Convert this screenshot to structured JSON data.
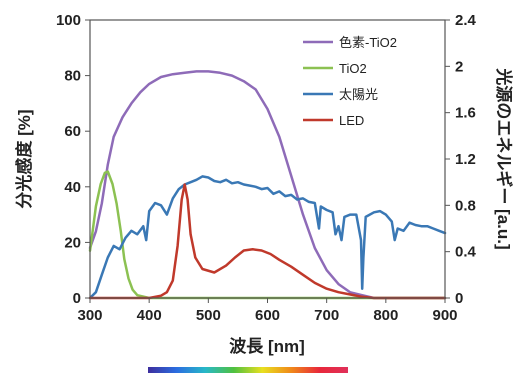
{
  "chart_data": {
    "type": "line",
    "xlabel": "波長 [nm]",
    "ylabel_left": "分光感度 [%]",
    "ylabel_right": "光源のエネルギー [a.u.]",
    "xlim": [
      300,
      900
    ],
    "ylim_left": [
      0,
      100
    ],
    "ylim_right": [
      0,
      2.4
    ],
    "x_ticks": [
      "300",
      "400",
      "500",
      "600",
      "700",
      "800",
      "900"
    ],
    "y_ticks_left": [
      "0",
      "20",
      "40",
      "60",
      "80",
      "100"
    ],
    "y_ticks_right": [
      "0",
      "0.4",
      "0.8",
      "1.2",
      "1.6",
      "2",
      "2.4"
    ],
    "legend_position": "top-right",
    "series": [
      {
        "name": "色素-TiO2",
        "axis": "left",
        "color": "#8e6bb8",
        "points": [
          [
            300,
            18
          ],
          [
            310,
            24
          ],
          [
            320,
            34
          ],
          [
            330,
            48
          ],
          [
            340,
            58
          ],
          [
            355,
            65
          ],
          [
            370,
            70
          ],
          [
            385,
            74
          ],
          [
            400,
            77
          ],
          [
            420,
            79.5
          ],
          [
            440,
            80.5
          ],
          [
            460,
            81
          ],
          [
            480,
            81.5
          ],
          [
            500,
            81.5
          ],
          [
            520,
            81
          ],
          [
            540,
            80
          ],
          [
            560,
            78
          ],
          [
            580,
            75
          ],
          [
            600,
            68
          ],
          [
            620,
            58
          ],
          [
            640,
            44
          ],
          [
            660,
            30
          ],
          [
            680,
            18
          ],
          [
            700,
            10
          ],
          [
            720,
            5
          ],
          [
            740,
            2
          ],
          [
            760,
            1
          ],
          [
            780,
            0
          ],
          [
            900,
            0
          ]
        ]
      },
      {
        "name": "TiO2",
        "axis": "left",
        "color": "#8cc152",
        "points": [
          [
            300,
            17
          ],
          [
            305,
            25
          ],
          [
            310,
            33
          ],
          [
            318,
            41
          ],
          [
            325,
            45
          ],
          [
            330,
            45.5
          ],
          [
            338,
            41
          ],
          [
            345,
            34
          ],
          [
            352,
            24
          ],
          [
            358,
            14
          ],
          [
            365,
            7
          ],
          [
            372,
            3
          ],
          [
            380,
            1
          ],
          [
            390,
            0.5
          ],
          [
            400,
            0
          ],
          [
            900,
            0
          ]
        ]
      },
      {
        "name": "太陽光",
        "axis": "right",
        "color": "#3a78b5",
        "points": [
          [
            300,
            0
          ],
          [
            310,
            0.05
          ],
          [
            320,
            0.2
          ],
          [
            330,
            0.35
          ],
          [
            340,
            0.45
          ],
          [
            350,
            0.42
          ],
          [
            360,
            0.52
          ],
          [
            370,
            0.58
          ],
          [
            380,
            0.55
          ],
          [
            390,
            0.62
          ],
          [
            395,
            0.5
          ],
          [
            400,
            0.75
          ],
          [
            410,
            0.82
          ],
          [
            420,
            0.8
          ],
          [
            430,
            0.72
          ],
          [
            440,
            0.86
          ],
          [
            450,
            0.94
          ],
          [
            460,
            0.98
          ],
          [
            470,
            1.0
          ],
          [
            480,
            1.02
          ],
          [
            490,
            1.05
          ],
          [
            500,
            1.04
          ],
          [
            510,
            1.01
          ],
          [
            520,
            1.0
          ],
          [
            530,
            1.02
          ],
          [
            540,
            0.99
          ],
          [
            550,
            1.0
          ],
          [
            560,
            0.98
          ],
          [
            570,
            0.97
          ],
          [
            580,
            0.96
          ],
          [
            590,
            0.94
          ],
          [
            600,
            0.95
          ],
          [
            610,
            0.9
          ],
          [
            620,
            0.92
          ],
          [
            630,
            0.88
          ],
          [
            640,
            0.89
          ],
          [
            650,
            0.85
          ],
          [
            660,
            0.86
          ],
          [
            670,
            0.83
          ],
          [
            680,
            0.82
          ],
          [
            687,
            0.6
          ],
          [
            690,
            0.79
          ],
          [
            700,
            0.76
          ],
          [
            710,
            0.74
          ],
          [
            715,
            0.55
          ],
          [
            720,
            0.62
          ],
          [
            725,
            0.5
          ],
          [
            730,
            0.7
          ],
          [
            740,
            0.72
          ],
          [
            750,
            0.72
          ],
          [
            758,
            0.5
          ],
          [
            760,
            0.08
          ],
          [
            762,
            0.35
          ],
          [
            766,
            0.7
          ],
          [
            780,
            0.74
          ],
          [
            790,
            0.75
          ],
          [
            800,
            0.72
          ],
          [
            810,
            0.66
          ],
          [
            815,
            0.5
          ],
          [
            820,
            0.6
          ],
          [
            830,
            0.58
          ],
          [
            840,
            0.65
          ],
          [
            850,
            0.63
          ],
          [
            860,
            0.62
          ],
          [
            870,
            0.62
          ],
          [
            880,
            0.6
          ],
          [
            890,
            0.58
          ],
          [
            900,
            0.56
          ]
        ]
      },
      {
        "name": "LED",
        "axis": "right",
        "color": "#c0392b",
        "points": [
          [
            300,
            0
          ],
          [
            400,
            0
          ],
          [
            420,
            0.02
          ],
          [
            430,
            0.05
          ],
          [
            440,
            0.15
          ],
          [
            448,
            0.45
          ],
          [
            455,
            0.85
          ],
          [
            460,
            0.98
          ],
          [
            465,
            0.85
          ],
          [
            470,
            0.55
          ],
          [
            478,
            0.35
          ],
          [
            490,
            0.25
          ],
          [
            510,
            0.22
          ],
          [
            530,
            0.28
          ],
          [
            545,
            0.35
          ],
          [
            560,
            0.41
          ],
          [
            575,
            0.42
          ],
          [
            590,
            0.41
          ],
          [
            605,
            0.38
          ],
          [
            620,
            0.33
          ],
          [
            640,
            0.27
          ],
          [
            660,
            0.2
          ],
          [
            680,
            0.13
          ],
          [
            700,
            0.08
          ],
          [
            720,
            0.05
          ],
          [
            740,
            0.03
          ],
          [
            760,
            0.01
          ],
          [
            780,
            0
          ],
          [
            900,
            0
          ]
        ]
      }
    ]
  },
  "colors": {
    "spectrum_bar": [
      "#3d2e9e",
      "#2b6de0",
      "#28b8c8",
      "#4fc040",
      "#e8e020",
      "#f08a1a",
      "#e8283a",
      "#e0305a"
    ]
  }
}
